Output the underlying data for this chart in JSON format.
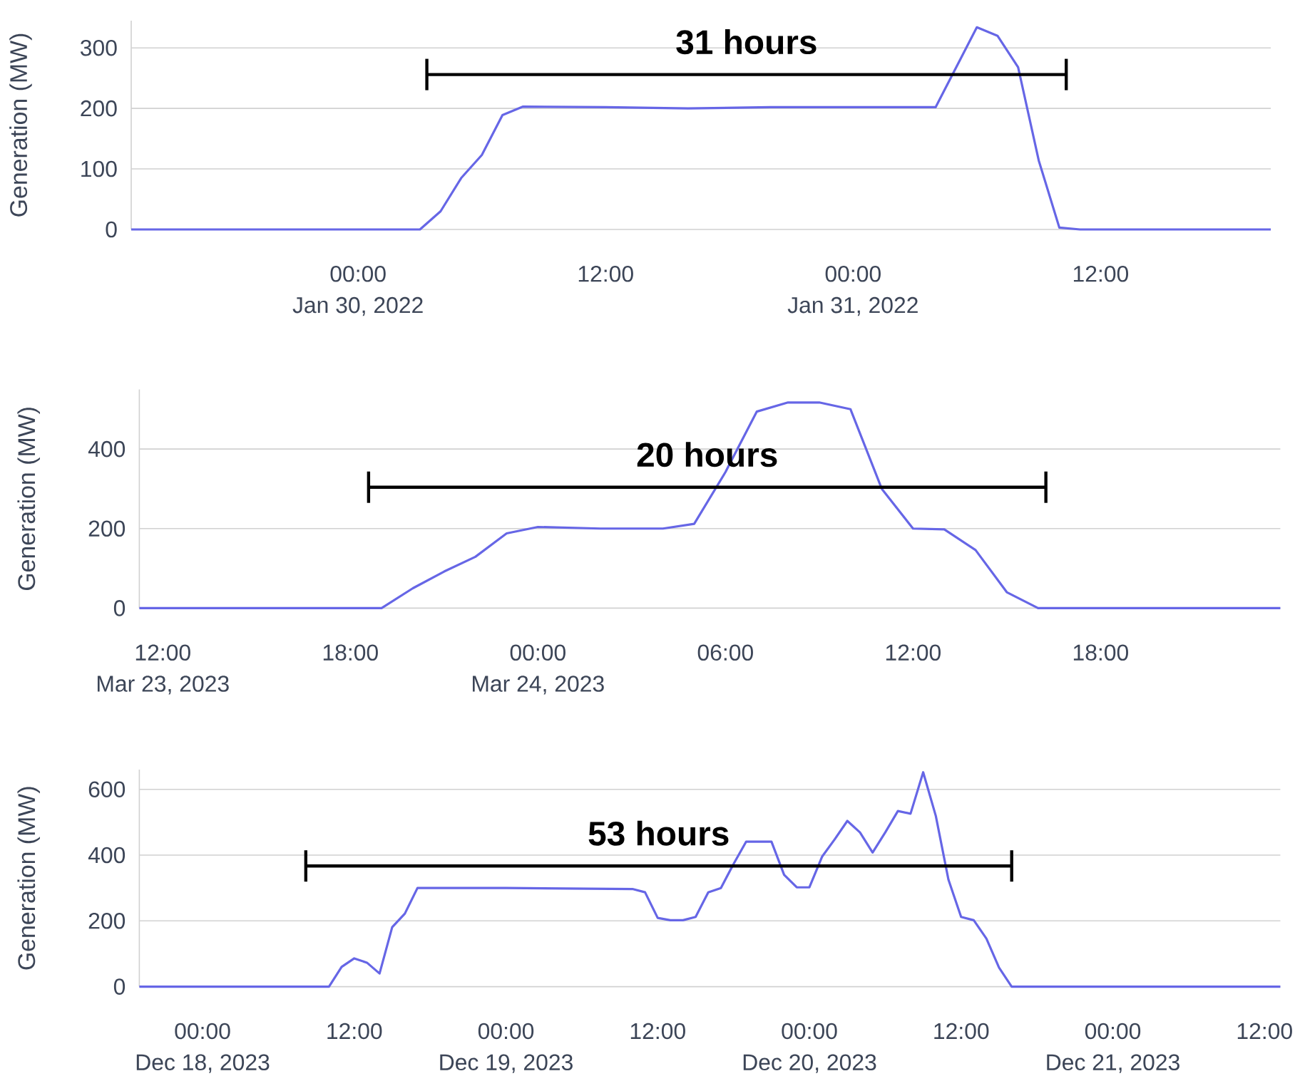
{
  "chart_data": [
    {
      "type": "line",
      "ylabel": "Generation (MW)",
      "grid": "y",
      "series": [
        {
          "color": "#6666e6",
          "x": [
            "2022-01-29T13:00",
            "2022-01-30T03:00",
            "2022-01-30T04:00",
            "2022-01-30T05:00",
            "2022-01-30T06:00",
            "2022-01-30T07:00",
            "2022-01-30T08:00",
            "2022-01-30T12:00",
            "2022-01-30T16:00",
            "2022-01-30T20:00",
            "2022-01-31T00:00",
            "2022-01-31T04:00",
            "2022-01-31T06:00",
            "2022-01-31T07:00",
            "2022-01-31T08:00",
            "2022-01-31T09:00",
            "2022-01-31T10:00",
            "2022-01-31T11:00",
            "2022-01-31T20:15"
          ],
          "values": [
            0,
            0,
            30,
            85,
            123,
            189,
            203,
            202,
            200,
            202,
            202,
            202,
            334,
            320,
            268,
            114,
            3,
            0,
            0
          ]
        },
        {
          "type": "line",
          "color": "#000000",
          "x": [
            "2022-01-30T03:20",
            "2022-01-31T10:20"
          ],
          "values": [
            256,
            256
          ]
        }
      ],
      "xlim": [
        "2022-01-29T13:00",
        "2022-01-31T20:15"
      ],
      "xticks": [
        {
          "value": "2022-01-30T00:00",
          "label": "00:00\nJan 30, 2022"
        },
        {
          "value": "2022-01-30T12:00",
          "label": "12:00"
        },
        {
          "value": "2022-01-31T00:00",
          "label": "00:00\nJan 31, 2022"
        },
        {
          "value": "2022-01-31T12:00",
          "label": "12:00"
        }
      ],
      "ylim": [
        0,
        345
      ],
      "yticks": [
        0,
        100,
        200,
        300
      ],
      "annotations": [
        {
          "text": "31 hours",
          "x": "2022-01-30T18:50",
          "y": 256
        }
      ]
    },
    {
      "type": "line",
      "ylabel": "Generation (MW)",
      "grid": "y",
      "series": [
        {
          "color": "#6666e6",
          "x": [
            "2023-03-23T11:15",
            "2023-03-23T19:00",
            "2023-03-23T20:00",
            "2023-03-23T21:00",
            "2023-03-23T22:00",
            "2023-03-23T23:00",
            "2023-03-24T00:00",
            "2023-03-24T02:00",
            "2023-03-24T04:00",
            "2023-03-24T05:00",
            "2023-03-24T06:00",
            "2023-03-24T07:00",
            "2023-03-24T08:00",
            "2023-03-24T09:00",
            "2023-03-24T10:00",
            "2023-03-24T11:00",
            "2023-03-24T12:00",
            "2023-03-24T13:00",
            "2023-03-24T14:00",
            "2023-03-24T15:00",
            "2023-03-24T16:00",
            "2023-03-24T23:45"
          ],
          "values": [
            0,
            0,
            50,
            92,
            129,
            188,
            204,
            200,
            200,
            212,
            342,
            494,
            517,
            517,
            500,
            300,
            200,
            198,
            146,
            40,
            0,
            0
          ]
        },
        {
          "type": "line",
          "color": "#000000",
          "x": [
            "2023-03-23T18:35",
            "2023-03-24T16:15"
          ],
          "values": [
            304,
            304
          ]
        }
      ],
      "xlim": [
        "2023-03-23T11:15",
        "2023-03-24T23:45"
      ],
      "xticks": [
        {
          "value": "2023-03-23T12:00",
          "label": "12:00\nMar 23, 2023"
        },
        {
          "value": "2023-03-23T18:00",
          "label": "18:00"
        },
        {
          "value": "2023-03-24T00:00",
          "label": "00:00\nMar 24, 2023"
        },
        {
          "value": "2023-03-24T06:00",
          "label": "06:00"
        },
        {
          "value": "2023-03-24T12:00",
          "label": "12:00"
        },
        {
          "value": "2023-03-24T18:00",
          "label": "18:00"
        }
      ],
      "ylim": [
        0,
        550
      ],
      "yticks": [
        0,
        200,
        400
      ],
      "annotations": [
        {
          "text": "20 hours",
          "x": "2023-03-24T05:25",
          "y": 304
        }
      ]
    },
    {
      "type": "line",
      "ylabel": "Generation (MW)",
      "grid": "y",
      "series": [
        {
          "color": "#6666e6",
          "x": [
            "2023-12-17T19:00",
            "2023-12-18T10:00",
            "2023-12-18T11:00",
            "2023-12-18T12:00",
            "2023-12-18T13:00",
            "2023-12-18T14:00",
            "2023-12-18T15:00",
            "2023-12-18T16:00",
            "2023-12-18T17:00",
            "2023-12-19T00:00",
            "2023-12-19T10:00",
            "2023-12-19T11:00",
            "2023-12-19T12:00",
            "2023-12-19T13:00",
            "2023-12-19T14:00",
            "2023-12-19T15:00",
            "2023-12-19T16:00",
            "2023-12-19T17:00",
            "2023-12-19T18:00",
            "2023-12-19T19:00",
            "2023-12-19T20:00",
            "2023-12-19T21:00",
            "2023-12-19T22:00",
            "2023-12-19T23:00",
            "2023-12-20T00:00",
            "2023-12-20T01:00",
            "2023-12-20T02:00",
            "2023-12-20T03:00",
            "2023-12-20T04:00",
            "2023-12-20T05:00",
            "2023-12-20T06:00",
            "2023-12-20T07:00",
            "2023-12-20T08:00",
            "2023-12-20T09:00",
            "2023-12-20T10:00",
            "2023-12-20T11:00",
            "2023-12-20T12:00",
            "2023-12-20T13:00",
            "2023-12-20T14:00",
            "2023-12-20T15:00",
            "2023-12-20T16:00",
            "2023-12-21T13:15"
          ],
          "values": [
            0,
            0,
            60,
            86,
            73,
            40,
            181,
            222,
            300,
            300,
            297,
            287,
            209,
            202,
            202,
            212,
            287,
            300,
            373,
            441,
            441,
            441,
            340,
            302,
            302,
            395,
            448,
            504,
            469,
            408,
            469,
            534,
            526,
            652,
            519,
            325,
            212,
            202,
            146,
            58,
            0,
            0
          ]
        },
        {
          "type": "line",
          "color": "#000000",
          "x": [
            "2023-12-18T08:10",
            "2023-12-20T16:00"
          ],
          "values": [
            367,
            367
          ]
        }
      ],
      "xlim": [
        "2023-12-17T19:00",
        "2023-12-21T13:15"
      ],
      "xticks": [
        {
          "value": "2023-12-18T00:00",
          "label": "00:00\nDec 18, 2023"
        },
        {
          "value": "2023-12-18T12:00",
          "label": "12:00"
        },
        {
          "value": "2023-12-19T00:00",
          "label": "00:00\nDec 19, 2023"
        },
        {
          "value": "2023-12-19T12:00",
          "label": "12:00"
        },
        {
          "value": "2023-12-20T00:00",
          "label": "00:00\nDec 20, 2023"
        },
        {
          "value": "2023-12-20T12:00",
          "label": "12:00"
        },
        {
          "value": "2023-12-21T00:00",
          "label": "00:00\nDec 21, 2023"
        },
        {
          "value": "2023-12-21T12:00",
          "label": "12:00"
        }
      ],
      "ylim": [
        0,
        660
      ],
      "yticks": [
        0,
        200,
        400,
        600
      ],
      "annotations": [
        {
          "text": "53 hours",
          "x": "2023-12-19T12:05",
          "y": 367
        }
      ]
    }
  ]
}
